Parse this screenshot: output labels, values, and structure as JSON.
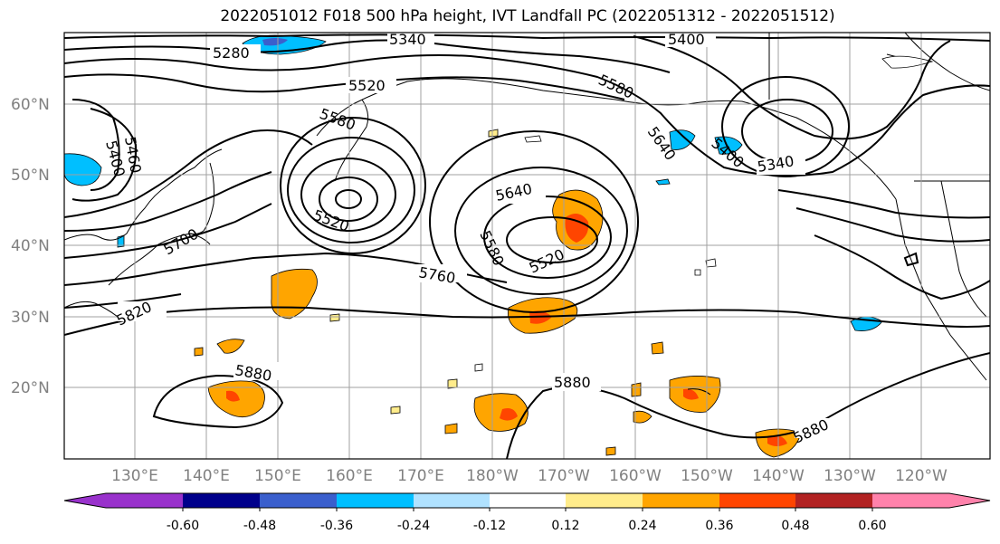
{
  "title": "2022051012 F018 500 hPa height, IVT Landfall PC (2022051312 - 2022051512)",
  "lat_labels": [
    "60°N",
    "50°N",
    "40°N",
    "30°N",
    "20°N"
  ],
  "lon_labels": [
    "130°E",
    "140°E",
    "150°E",
    "160°E",
    "170°E",
    "180°W",
    "170°W",
    "160°W",
    "150°W",
    "140°W",
    "130°W",
    "120°W"
  ],
  "contour_labels": [
    "5280",
    "5340",
    "5400",
    "5520",
    "5580",
    "5460",
    "5400",
    "5580",
    "5640",
    "5400",
    "5340",
    "5640",
    "5520",
    "5580",
    "5700",
    "5520",
    "5760",
    "5820",
    "5880",
    "5880",
    "5880"
  ],
  "colorbar": {
    "ticks": [
      "-0.60",
      "-0.48",
      "-0.36",
      "-0.24",
      "-0.12",
      "0.12",
      "0.24",
      "0.36",
      "0.48",
      "0.60"
    ],
    "colors": [
      "#9932cc",
      "#00008b",
      "#3a5fcd",
      "#00bfff",
      "#b0e2ff",
      "#ffffff",
      "#ffec8b",
      "#ffa500",
      "#ff4500",
      "#b22222",
      "#ff82ab"
    ]
  }
}
